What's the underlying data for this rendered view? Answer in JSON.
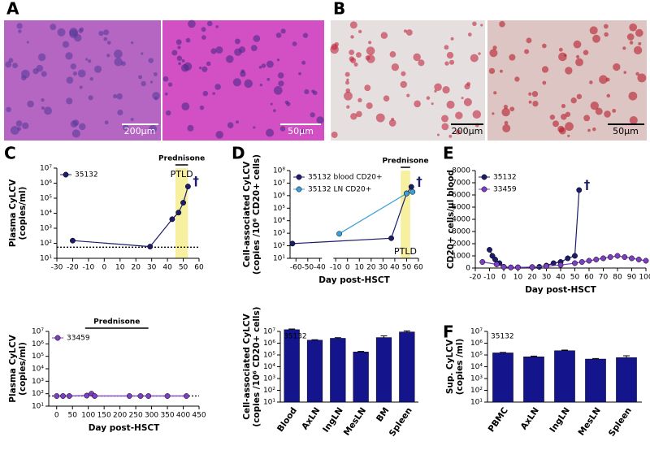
{
  "images": [
    {
      "panel": "A",
      "scale_bars": [
        "200µm",
        "50µm"
      ]
    },
    {
      "panel": "B",
      "scale_bars": [
        "200µm",
        "50µm"
      ]
    }
  ],
  "chart_data": [
    {
      "type": "line",
      "panel": "C",
      "log_y": true,
      "ylabel": [
        "Plasma CyLCV",
        "(copies/ml)"
      ],
      "xlim": [
        -30,
        60
      ],
      "xticks": [
        -30,
        -20,
        -10,
        0,
        10,
        20,
        30,
        40,
        50,
        60
      ],
      "ylim": [
        10,
        10000000
      ],
      "yticks": [
        {
          "value": 10,
          "label": "10¹"
        },
        {
          "value": 100,
          "label": "10²"
        },
        {
          "value": 1000,
          "label": "10³"
        },
        {
          "value": 10000,
          "label": "10⁴"
        },
        {
          "value": 100000,
          "label": "10⁵"
        },
        {
          "value": 1000000,
          "label": "10⁶"
        },
        {
          "value": 10000000,
          "label": "10⁷"
        }
      ],
      "reference_line": 55,
      "treatment": {
        "label": "Prednisone",
        "span": [
          45,
          53
        ]
      },
      "ptld": {
        "label": "PTLD",
        "span": [
          45,
          53
        ]
      },
      "death_label": "†",
      "series": [
        {
          "name": "35132",
          "color": "#1c1c6b",
          "x": [
            -20,
            29,
            43,
            47,
            50,
            53
          ],
          "values": [
            150,
            60,
            4000,
            11000,
            50000,
            600000
          ]
        }
      ]
    },
    {
      "type": "line",
      "log_y": true,
      "ylabel": [
        "Plasma CyLCV",
        "(copies/ml)"
      ],
      "xlabel": "Day post-HSCT",
      "xlim": [
        -25,
        450
      ],
      "xticks": [
        0,
        50,
        100,
        150,
        200,
        250,
        300,
        350,
        400,
        450
      ],
      "ylim": [
        10,
        10000000
      ],
      "yticks": [
        {
          "value": 10,
          "label": "10¹"
        },
        {
          "value": 100,
          "label": "10²"
        },
        {
          "value": 1000,
          "label": "10³"
        },
        {
          "value": 10000,
          "label": "10⁴"
        },
        {
          "value": 100000,
          "label": "10⁵"
        },
        {
          "value": 1000000,
          "label": "10⁶"
        },
        {
          "value": 10000000,
          "label": "10⁷"
        }
      ],
      "reference_line": 65,
      "treatment": {
        "label": "Prednisone",
        "span": [
          90,
          290
        ]
      },
      "series": [
        {
          "name": "33459",
          "color": "#7b3fbf",
          "x": [
            0,
            20,
            40,
            95,
            110,
            120,
            230,
            265,
            290,
            350,
            410
          ],
          "values": [
            65,
            65,
            65,
            70,
            100,
            65,
            65,
            65,
            65,
            65,
            65
          ]
        }
      ]
    },
    {
      "type": "line",
      "panel": "D",
      "log_y": true,
      "ylabel": [
        "Cell-associated CyLCV",
        "(copies /10⁶ CD20+ cells)"
      ],
      "xlabel": "Day post-HSCT",
      "xlim": [
        -65,
        60
      ],
      "xbreak": [
        -38,
        -12
      ],
      "xticks": [
        -60,
        -50,
        -40,
        -10,
        0,
        10,
        20,
        30,
        40,
        50,
        60
      ],
      "ylim": [
        10,
        100000000
      ],
      "yticks": [
        {
          "value": 10,
          "label": "10¹"
        },
        {
          "value": 100,
          "label": "10²"
        },
        {
          "value": 1000,
          "label": "10³"
        },
        {
          "value": 10000,
          "label": "10⁴"
        },
        {
          "value": 100000,
          "label": "10⁵"
        },
        {
          "value": 1000000,
          "label": "10⁶"
        },
        {
          "value": 10000000,
          "label": "10⁷"
        },
        {
          "value": 100000000,
          "label": "10⁸"
        }
      ],
      "treatment": {
        "label": "Prednisone",
        "span": [
          45,
          53
        ]
      },
      "ptld": {
        "label": "PTLD",
        "span": [
          45,
          53
        ]
      },
      "death_label": "†",
      "series": [
        {
          "name": "35132 blood CD20+",
          "color": "#1c1c6b",
          "x": [
            -63,
            37,
            50,
            54
          ],
          "values": [
            150,
            400,
            1500000,
            5000000
          ]
        },
        {
          "name": "35132 LN CD20+",
          "color": "#3aa0d8",
          "x": [
            -7,
            50,
            55
          ],
          "values": [
            900,
            1500000,
            2000000
          ]
        }
      ]
    },
    {
      "type": "bar",
      "log_y": true,
      "note": "35132",
      "ylabel": [
        "Cell-associated CyLCV",
        "(copies /10⁶ CD20+ cells)"
      ],
      "categories": [
        "Blood",
        "AxLN",
        "IngLN",
        "MesLN",
        "BM",
        "Spleen"
      ],
      "values": [
        14000000,
        1800000,
        2600000,
        180000,
        3000000,
        9000000
      ],
      "errors": [
        2000000,
        150000,
        300000,
        20000,
        1200000,
        2000000
      ],
      "color": "#14148c",
      "ylim": [
        10,
        10000000
      ],
      "yticks": [
        {
          "value": 10,
          "label": "10¹"
        },
        {
          "value": 100,
          "label": "10²"
        },
        {
          "value": 1000,
          "label": "10³"
        },
        {
          "value": 10000,
          "label": "10⁴"
        },
        {
          "value": 100000,
          "label": "10⁵"
        },
        {
          "value": 1000000,
          "label": "10⁶"
        },
        {
          "value": 10000000,
          "label": "10⁷"
        }
      ]
    },
    {
      "type": "line",
      "panel": "E",
      "log_y": false,
      "ylabel": [
        "CD20+ cells/µl blood"
      ],
      "xlabel": "Day post-HSCT",
      "xlim": [
        -20,
        100
      ],
      "xticks": [
        -20,
        -10,
        0,
        10,
        20,
        30,
        40,
        50,
        60,
        70,
        80,
        90,
        100
      ],
      "ylim": [
        0,
        8000
      ],
      "yticks": [
        0,
        1000,
        2000,
        3000,
        4000,
        5000,
        6000,
        7000,
        8000
      ],
      "death_label": "†",
      "series": [
        {
          "name": "35132",
          "color": "#1c1c6b",
          "x": [
            -10,
            -8,
            -6,
            -3,
            0,
            5,
            10,
            20,
            25,
            30,
            35,
            40,
            45,
            50,
            53
          ],
          "values": [
            1500,
            1000,
            700,
            400,
            100,
            50,
            50,
            80,
            100,
            200,
            400,
            500,
            800,
            1000,
            6400
          ]
        },
        {
          "name": "33459",
          "color": "#7b3fbf",
          "x": [
            -15,
            -5,
            0,
            5,
            10,
            20,
            30,
            40,
            50,
            55,
            60,
            65,
            70,
            75,
            80,
            85,
            90,
            95,
            100
          ],
          "values": [
            500,
            300,
            100,
            50,
            60,
            80,
            150,
            250,
            400,
            500,
            600,
            700,
            800,
            900,
            1000,
            900,
            800,
            700,
            600
          ]
        }
      ]
    },
    {
      "type": "bar",
      "panel": "F",
      "log_y": true,
      "note": "35132",
      "ylabel": [
        "Sup. CyLCV",
        "(copies /ml)"
      ],
      "categories": [
        "PBMC",
        "AxLN",
        "IngLN",
        "MesLN",
        "Spleen"
      ],
      "values": [
        150000,
        70000,
        230000,
        45000,
        60000
      ],
      "errors": [
        15000,
        10000,
        30000,
        5000,
        25000
      ],
      "color": "#14148c",
      "ylim": [
        10,
        10000000
      ],
      "yticks": [
        {
          "value": 10,
          "label": "10¹"
        },
        {
          "value": 100,
          "label": "10²"
        },
        {
          "value": 1000,
          "label": "10³"
        },
        {
          "value": 10000,
          "label": "10⁴"
        },
        {
          "value": 100000,
          "label": "10⁵"
        },
        {
          "value": 1000000,
          "label": "10⁶"
        },
        {
          "value": 10000000,
          "label": "10⁷"
        }
      ]
    }
  ]
}
